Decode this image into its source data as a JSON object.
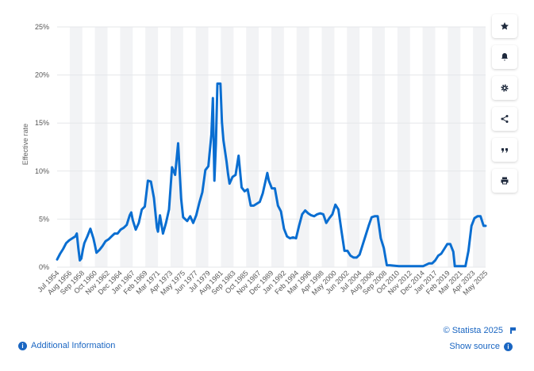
{
  "colors": {
    "line": "#0a6ed1",
    "band": "#f2f3f5",
    "grid": "#e5e7ea",
    "link": "#1a66c2"
  },
  "toolbar": {
    "icons": [
      "star-icon",
      "bell-icon",
      "gear-icon",
      "share-icon",
      "quote-icon",
      "print-icon"
    ]
  },
  "footer": {
    "copyright": "© Statista 2025",
    "show_source": "Show source",
    "additional_info": "Additional Information"
  },
  "chart_data": {
    "type": "line",
    "ylabel": "Effective rate",
    "xlabel": "",
    "ylim": [
      0,
      25
    ],
    "y_ticks": [
      "0%",
      "5%",
      "10%",
      "15%",
      "20%",
      "25%"
    ],
    "x_ticks": [
      "Jul 1954",
      "Aug 1956",
      "Sep 1958",
      "Oct 1960",
      "Nov 1962",
      "Dec 1964",
      "Jan 1967",
      "Feb 1969",
      "Mar 1971",
      "Apr 1973",
      "May 1975",
      "Jun 1977",
      "Jul 1979",
      "Aug 1981",
      "Sep 1983",
      "Oct 1985",
      "Nov 1987",
      "Dec 1989",
      "Jan 1992",
      "Feb 1994",
      "Mar 1996",
      "Apr 1998",
      "May 2000",
      "Jun 2002",
      "Jul 2004",
      "Aug 2006",
      "Sep 2008",
      "Oct 2010",
      "Nov 2012",
      "Dec 2014",
      "Jan 2017",
      "Feb 2019",
      "Mar 2021",
      "Apr 2023",
      "May 2025"
    ],
    "x_range": [
      "Jul 1954",
      "May 2025"
    ],
    "grid": true,
    "series": [
      {
        "points": [
          [
            "Jul 1954",
            0.8
          ],
          [
            "Jan 1955",
            1.4
          ],
          [
            "Jul 1955",
            1.9
          ],
          [
            "Jan 1956",
            2.5
          ],
          [
            "Jul 1956",
            2.8
          ],
          [
            "Jan 1957",
            3.0
          ],
          [
            "Jul 1957",
            3.2
          ],
          [
            "Oct 1957",
            3.5
          ],
          [
            "Jan 1958",
            2.0
          ],
          [
            "Apr 1958",
            0.7
          ],
          [
            "Jul 1958",
            0.9
          ],
          [
            "Oct 1958",
            1.8
          ],
          [
            "Jan 1959",
            2.5
          ],
          [
            "Jul 1959",
            3.2
          ],
          [
            "Jan 1960",
            4.0
          ],
          [
            "Jul 1960",
            3.0
          ],
          [
            "Oct 1960",
            2.3
          ],
          [
            "Jan 1961",
            1.5
          ],
          [
            "Jul 1961",
            1.8
          ],
          [
            "Jan 1962",
            2.2
          ],
          [
            "Jul 1962",
            2.7
          ],
          [
            "Jan 1963",
            2.9
          ],
          [
            "Jul 1963",
            3.2
          ],
          [
            "Jan 1964",
            3.5
          ],
          [
            "Jul 1964",
            3.5
          ],
          [
            "Jan 1965",
            3.9
          ],
          [
            "Jul 1965",
            4.1
          ],
          [
            "Jan 1966",
            4.4
          ],
          [
            "Jul 1966",
            5.4
          ],
          [
            "Oct 1966",
            5.7
          ],
          [
            "Jan 1967",
            4.9
          ],
          [
            "Jul 1967",
            3.9
          ],
          [
            "Jan 1968",
            4.6
          ],
          [
            "Jul 1968",
            6.0
          ],
          [
            "Jan 1969",
            6.3
          ],
          [
            "Jul 1969",
            9.0
          ],
          [
            "Jan 1970",
            8.9
          ],
          [
            "Jul 1970",
            7.2
          ],
          [
            "Jan 1971",
            4.1
          ],
          [
            "Mar 1971",
            3.7
          ],
          [
            "Jul 1971",
            5.4
          ],
          [
            "Jan 1972",
            3.5
          ],
          [
            "Jul 1972",
            4.6
          ],
          [
            "Jan 1973",
            6.0
          ],
          [
            "Jul 1973",
            10.4
          ],
          [
            "Oct 1973",
            10.0
          ],
          [
            "Jan 1974",
            9.6
          ],
          [
            "Jul 1974",
            12.9
          ],
          [
            "Jan 1975",
            7.1
          ],
          [
            "May 1975",
            5.2
          ],
          [
            "Jan 1976",
            4.8
          ],
          [
            "Jul 1976",
            5.3
          ],
          [
            "Jan 1977",
            4.6
          ],
          [
            "Jul 1977",
            5.4
          ],
          [
            "Jan 1978",
            6.7
          ],
          [
            "Jul 1978",
            7.8
          ],
          [
            "Jan 1979",
            10.1
          ],
          [
            "Jul 1979",
            10.5
          ],
          [
            "Jan 1980",
            13.8
          ],
          [
            "Apr 1980",
            17.6
          ],
          [
            "Jul 1980",
            9.0
          ],
          [
            "Oct 1980",
            12.8
          ],
          [
            "Jan 1981",
            19.1
          ],
          [
            "Jul 1981",
            19.1
          ],
          [
            "Oct 1981",
            15.1
          ],
          [
            "Jan 1982",
            13.2
          ],
          [
            "Jul 1982",
            11.0
          ],
          [
            "Oct 1982",
            9.7
          ],
          [
            "Jan 1983",
            8.7
          ],
          [
            "Jul 1983",
            9.4
          ],
          [
            "Jan 1984",
            9.6
          ],
          [
            "Jul 1984",
            11.6
          ],
          [
            "Jan 1985",
            8.3
          ],
          [
            "Jul 1985",
            7.9
          ],
          [
            "Jan 1986",
            8.1
          ],
          [
            "Jul 1986",
            6.4
          ],
          [
            "Jan 1987",
            6.4
          ],
          [
            "Jul 1987",
            6.6
          ],
          [
            "Jan 1988",
            6.8
          ],
          [
            "Jul 1988",
            7.7
          ],
          [
            "Jan 1989",
            9.1
          ],
          [
            "Apr 1989",
            9.8
          ],
          [
            "Jul 1989",
            9.0
          ],
          [
            "Jan 1990",
            8.2
          ],
          [
            "Jul 1990",
            8.2
          ],
          [
            "Jan 1991",
            6.4
          ],
          [
            "Jul 1991",
            5.8
          ],
          [
            "Jan 1992",
            4.0
          ],
          [
            "Jul 1992",
            3.2
          ],
          [
            "Jan 1993",
            3.0
          ],
          [
            "Jul 1993",
            3.1
          ],
          [
            "Jan 1994",
            3.0
          ],
          [
            "Jul 1994",
            4.3
          ],
          [
            "Jan 1995",
            5.5
          ],
          [
            "Jul 1995",
            5.9
          ],
          [
            "Jan 1996",
            5.6
          ],
          [
            "Jul 1996",
            5.4
          ],
          [
            "Jan 1997",
            5.3
          ],
          [
            "Jul 1997",
            5.5
          ],
          [
            "Jan 1998",
            5.6
          ],
          [
            "Jul 1998",
            5.5
          ],
          [
            "Jan 1999",
            4.6
          ],
          [
            "Jul 1999",
            5.1
          ],
          [
            "Jan 2000",
            5.5
          ],
          [
            "Jul 2000",
            6.5
          ],
          [
            "Jan 2001",
            6.0
          ],
          [
            "Jul 2001",
            3.8
          ],
          [
            "Jan 2002",
            1.7
          ],
          [
            "Jul 2002",
            1.7
          ],
          [
            "Jan 2003",
            1.2
          ],
          [
            "Jul 2003",
            1.0
          ],
          [
            "Jan 2004",
            1.0
          ],
          [
            "Jul 2004",
            1.3
          ],
          [
            "Jan 2005",
            2.3
          ],
          [
            "Jul 2005",
            3.3
          ],
          [
            "Jan 2006",
            4.3
          ],
          [
            "Jul 2006",
            5.2
          ],
          [
            "Jan 2007",
            5.3
          ],
          [
            "Jul 2007",
            5.3
          ],
          [
            "Jan 2008",
            3.0
          ],
          [
            "Jul 2008",
            2.0
          ],
          [
            "Jan 2009",
            0.2
          ],
          [
            "Jul 2009",
            0.2
          ],
          [
            "Jan 2011",
            0.1
          ],
          [
            "Jan 2013",
            0.1
          ],
          [
            "Jan 2015",
            0.1
          ],
          [
            "Jan 2016",
            0.4
          ],
          [
            "Jul 2016",
            0.4
          ],
          [
            "Jan 2017",
            0.7
          ],
          [
            "Jul 2017",
            1.2
          ],
          [
            "Jan 2018",
            1.4
          ],
          [
            "Jul 2018",
            1.9
          ],
          [
            "Jan 2019",
            2.4
          ],
          [
            "Jul 2019",
            2.4
          ],
          [
            "Jan 2020",
            1.6
          ],
          [
            "Apr 2020",
            0.1
          ],
          [
            "Jan 2021",
            0.1
          ],
          [
            "Jan 2022",
            0.1
          ],
          [
            "Jul 2022",
            1.7
          ],
          [
            "Jan 2023",
            4.3
          ],
          [
            "Jul 2023",
            5.1
          ],
          [
            "Jan 2024",
            5.3
          ],
          [
            "Jul 2024",
            5.3
          ],
          [
            "Jan 2025",
            4.3
          ],
          [
            "May 2025",
            4.3
          ]
        ]
      }
    ]
  }
}
